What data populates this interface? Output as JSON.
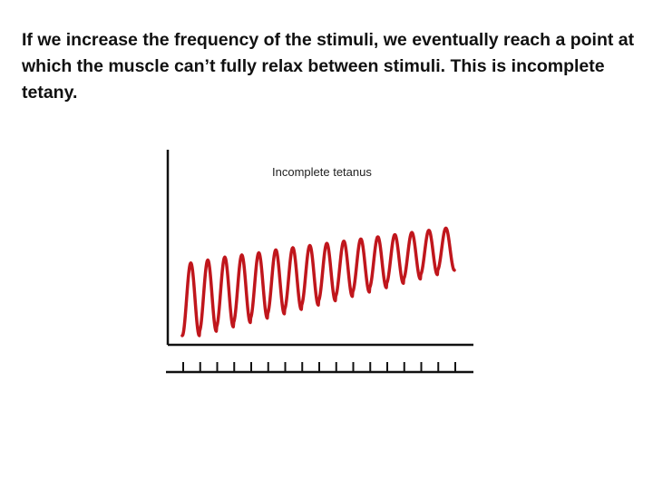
{
  "slide": {
    "caption": "If we increase the frequency of the stimuli, we eventually reach a point at which the muscle can’t fully relax between stimuli.  This is incomplete tetany."
  },
  "chart_data": {
    "type": "line",
    "title": "Incomplete tetanus",
    "xlabel": "",
    "ylabel": "",
    "grid": false,
    "legend": "none",
    "stimulus_marks": 17,
    "series": [
      {
        "color": "#c0161c",
        "cycles": 16,
        "peaks": [
          0.52,
          0.54,
          0.56,
          0.575,
          0.59,
          0.61,
          0.625,
          0.64,
          0.655,
          0.67,
          0.685,
          0.7,
          0.715,
          0.73,
          0.745,
          0.76
        ],
        "troughs": [
          0.02,
          0.05,
          0.08,
          0.11,
          0.14,
          0.17,
          0.2,
          0.23,
          0.26,
          0.29,
          0.32,
          0.35,
          0.38,
          0.41,
          0.44,
          0.47
        ]
      }
    ],
    "ylim": [
      0,
      1
    ]
  }
}
